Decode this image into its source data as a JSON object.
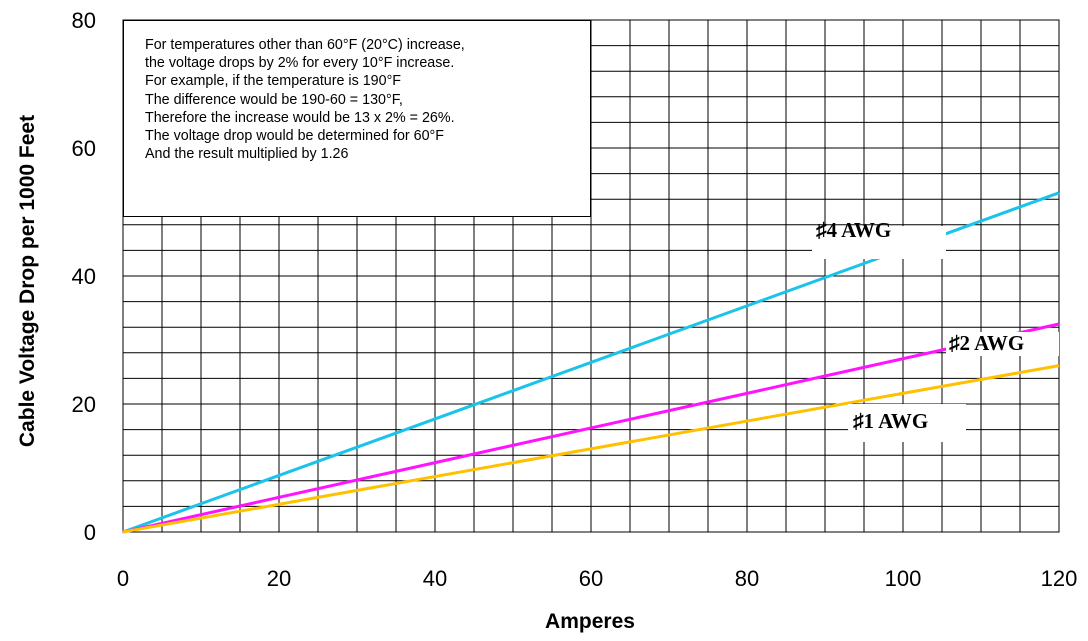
{
  "chart_data": {
    "type": "line",
    "title": "",
    "xlabel": "Amperes",
    "ylabel": "Cable Voltage Drop per 1000 Feet",
    "xlim": [
      0,
      120
    ],
    "ylim": [
      0,
      80
    ],
    "x_ticks": [
      "0",
      "20",
      "40",
      "60",
      "80",
      "100",
      "120"
    ],
    "y_ticks": [
      "0",
      "20",
      "40",
      "60",
      "80"
    ],
    "grid": true,
    "series": [
      {
        "name": "#4 AWG",
        "color": "#19c3ea",
        "x": [
          0,
          120
        ],
        "y": [
          0,
          53
        ]
      },
      {
        "name": "#2 AWG",
        "color": "#ff12ff",
        "x": [
          0,
          120
        ],
        "y": [
          0,
          32.5
        ]
      },
      {
        "name": "#1 AWG",
        "color": "#ffc000",
        "x": [
          0,
          120
        ],
        "y": [
          0,
          26
        ]
      }
    ],
    "series_labels": [
      {
        "text": "♯4 AWG",
        "series": "#4 AWG"
      },
      {
        "text": "♯2 AWG",
        "series": "#2 AWG"
      },
      {
        "text": "♯1 AWG",
        "series": "#1 AWG"
      }
    ],
    "annotation": [
      "For temperatures other than 60°F (20°C) increase,",
      "the voltage drops by 2% for every 10°F increase.",
      "For example, if the temperature is 190°F",
      "The difference would be 190-60 = 130°F,",
      "Therefore the increase would be 13 x 2% = 26%.",
      "The voltage drop would be determined for 60°F",
      "And the result multiplied by 1.26"
    ]
  }
}
